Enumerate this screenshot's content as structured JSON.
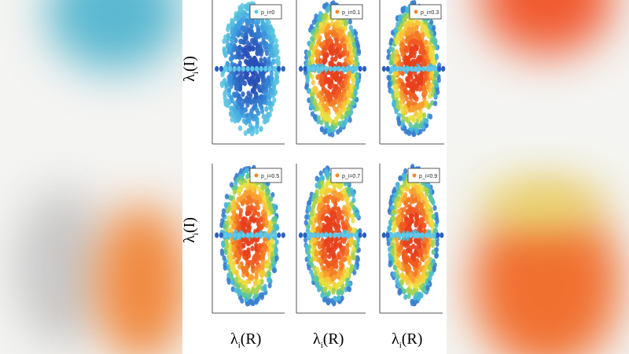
{
  "chart_data": [
    {
      "type": "scatter",
      "legend": "p_i=0",
      "p": 0,
      "legend_color": "#5bc8e0",
      "xlabel": "",
      "ylabel": "λi(I)",
      "grid": false,
      "legend_placement": "top-right"
    },
    {
      "type": "scatter",
      "legend": "p_i=0.1",
      "p": 0.1,
      "legend_color": "#f08a30",
      "xlabel": "",
      "ylabel": "",
      "grid": false,
      "legend_placement": "top-right"
    },
    {
      "type": "scatter",
      "legend": "p_i=0.3",
      "p": 0.3,
      "legend_color": "#f08a30",
      "xlabel": "",
      "ylabel": "",
      "grid": false,
      "legend_placement": "top-right"
    },
    {
      "type": "scatter",
      "legend": "p_i=0.5",
      "p": 0.5,
      "legend_color": "#f08a30",
      "xlabel": "λi(R)",
      "ylabel": "λi(I)",
      "grid": false,
      "legend_placement": "top-right"
    },
    {
      "type": "scatter",
      "legend": "p_i=0.7",
      "p": 0.7,
      "legend_color": "#f08a30",
      "xlabel": "λi(R)",
      "ylabel": "",
      "grid": false,
      "legend_placement": "top-right"
    },
    {
      "type": "scatter",
      "legend": "p_i=0.9",
      "p": 0.9,
      "legend_color": "#f08a30",
      "xlabel": "λi(R)",
      "ylabel": "",
      "grid": false,
      "legend_placement": "top-right"
    }
  ],
  "labels": {
    "lambda": "λ",
    "sub": "i",
    "imag": "(I)",
    "real": "(R)"
  }
}
